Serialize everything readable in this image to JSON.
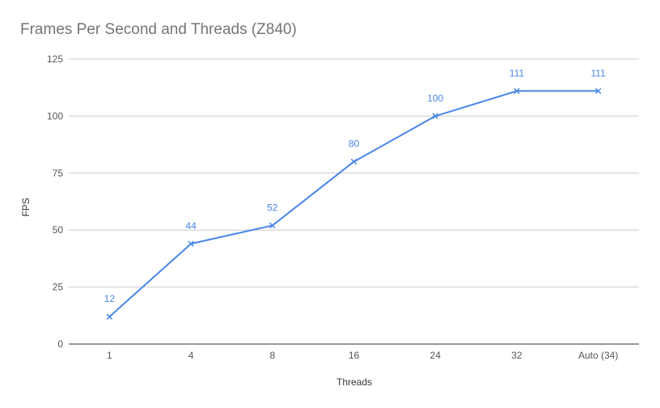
{
  "chart_data": {
    "type": "line",
    "title": "Frames Per Second and Threads (Z840)",
    "xlabel": "Threads",
    "ylabel": "FPS",
    "categories": [
      "1",
      "4",
      "8",
      "16",
      "24",
      "32",
      "Auto (34)"
    ],
    "series": [
      {
        "values": [
          12,
          44,
          52,
          80,
          100,
          111,
          111
        ],
        "color": "#4a86e8",
        "marker": "x"
      }
    ],
    "ylim": [
      0,
      125
    ],
    "yticks": [
      0,
      25,
      50,
      75,
      100,
      125
    ],
    "grid": true,
    "data_labels": true,
    "legend": "none"
  }
}
